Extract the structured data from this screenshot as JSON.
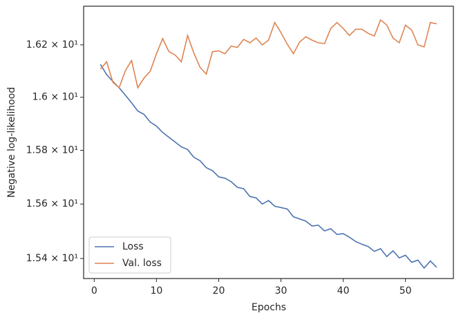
{
  "chart_data": {
    "type": "line",
    "x_label": "Epochs",
    "y_label": "Negative log-likelihood",
    "x": [
      1,
      2,
      3,
      4,
      5,
      6,
      7,
      8,
      9,
      10,
      11,
      12,
      13,
      14,
      15,
      16,
      17,
      18,
      19,
      20,
      21,
      22,
      23,
      24,
      25,
      26,
      27,
      28,
      29,
      30,
      31,
      32,
      33,
      34,
      35,
      36,
      37,
      38,
      39,
      40,
      41,
      42,
      43,
      44,
      45,
      46,
      47,
      48,
      49,
      50,
      51,
      52,
      53,
      54,
      55
    ],
    "series": [
      {
        "name": "Loss",
        "color": "#4c72b0",
        "values": [
          16.125,
          16.086,
          16.06,
          16.036,
          16.008,
          15.979,
          15.948,
          15.935,
          15.906,
          15.891,
          15.867,
          15.849,
          15.831,
          15.813,
          15.803,
          15.774,
          15.761,
          15.735,
          15.724,
          15.701,
          15.696,
          15.683,
          15.662,
          15.657,
          15.628,
          15.623,
          15.6,
          15.613,
          15.592,
          15.587,
          15.582,
          15.553,
          15.545,
          15.537,
          15.519,
          15.522,
          15.501,
          15.509,
          15.488,
          15.491,
          15.478,
          15.462,
          15.452,
          15.444,
          15.426,
          15.436,
          15.407,
          15.428,
          15.402,
          15.412,
          15.386,
          15.394,
          15.365,
          15.391,
          15.368
        ]
      },
      {
        "name": "Val. loss",
        "color": "#dd8452",
        "values": [
          16.107,
          16.135,
          16.057,
          16.036,
          16.101,
          16.14,
          16.036,
          16.073,
          16.099,
          16.166,
          16.224,
          16.174,
          16.161,
          16.135,
          16.236,
          16.169,
          16.114,
          16.088,
          16.174,
          16.177,
          16.166,
          16.195,
          16.19,
          16.221,
          16.208,
          16.226,
          16.2,
          16.218,
          16.286,
          16.247,
          16.203,
          16.166,
          16.211,
          16.231,
          16.218,
          16.208,
          16.205,
          16.263,
          16.286,
          16.263,
          16.236,
          16.26,
          16.26,
          16.244,
          16.234,
          16.296,
          16.276,
          16.226,
          16.208,
          16.276,
          16.257,
          16.2,
          16.192,
          16.286,
          16.281
        ]
      }
    ],
    "xlim": [
      -1.7,
      57.7
    ],
    "xticks": [
      0,
      10,
      20,
      30,
      40,
      50
    ],
    "ylim": [
      15.327,
      16.349
    ],
    "y_scale": "log",
    "yticks": [
      {
        "value": 15.4,
        "label": "1.54 × 10¹"
      },
      {
        "value": 15.6,
        "label": "1.56 × 10¹"
      },
      {
        "value": 15.8,
        "label": "1.58 × 10¹"
      },
      {
        "value": 16.0,
        "label": "1.6 × 10¹"
      },
      {
        "value": 16.2,
        "label": "1.62 × 10¹"
      }
    ],
    "legend": "lower left",
    "grid": false
  }
}
